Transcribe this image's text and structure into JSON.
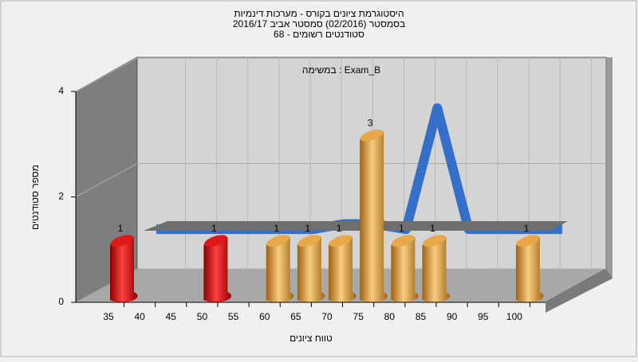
{
  "chart_data": {
    "type": "bar3d",
    "title": "היסטוגרמת ציונים בקורס - מערכות דינמיות",
    "subtitle": "בסמסטר  (02/2016)  סמסטר אביב 2016/17",
    "subtitle2": "סטודנטים רשומים - 68",
    "annotation": "במשימה : Exam_B",
    "x_label": "טווח ציונים",
    "y_label": "מספר סטודנטים",
    "categories": [
      35,
      40,
      45,
      50,
      55,
      60,
      65,
      70,
      75,
      80,
      85,
      90,
      95,
      100
    ],
    "values": [
      1,
      0,
      0,
      1,
      0,
      1,
      1,
      1,
      3,
      1,
      1,
      0,
      0,
      1
    ],
    "colors": [
      "#e01818",
      "#e01818",
      "#e01818",
      "#e01818",
      "#e8a848",
      "#e8a848",
      "#e8a848",
      "#e8a848",
      "#e8a848",
      "#e8a848",
      "#e8a848",
      "#e8a848",
      "#e8a848",
      "#e8a848"
    ],
    "curve": [
      1,
      1,
      1,
      1,
      1,
      1,
      1.1,
      1.1,
      1,
      3.3,
      1,
      1,
      1,
      1
    ],
    "curve_color": "#3570c8",
    "ylim": [
      0,
      4
    ],
    "yticks": [
      0,
      2,
      4
    ],
    "grid": true
  }
}
